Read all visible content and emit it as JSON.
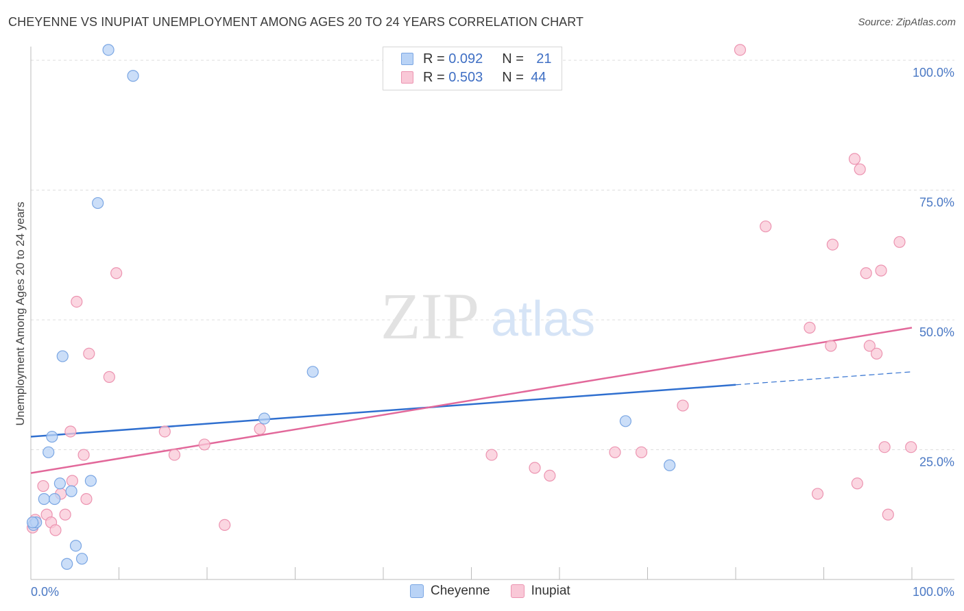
{
  "title": "CHEYENNE VS INUPIAT UNEMPLOYMENT AMONG AGES 20 TO 24 YEARS CORRELATION CHART",
  "source": "Source: ZipAtlas.com",
  "watermark": {
    "zip": "ZIP",
    "atlas": "atlas"
  },
  "legend": {
    "cheyenne": {
      "r_label": "R = ",
      "r": "0.092",
      "n_label": "N = ",
      "n": "21"
    },
    "inupiat": {
      "r_label": "R = ",
      "r": "0.503",
      "n_label": "N = ",
      "n": "44"
    }
  },
  "bottom_legend": {
    "cheyenne": "Cheyenne",
    "inupiat": "Inupiat"
  },
  "colors": {
    "cheyenne_fill": "#b9d3f6",
    "cheyenne_stroke": "#7aa6e3",
    "cheyenne_line": "#2f6fcf",
    "inupiat_fill": "#f9c8d7",
    "inupiat_stroke": "#ec93b0",
    "inupiat_line": "#e2689a",
    "tick": "#4a78c4",
    "grid": "#dddddd"
  },
  "chart_data": {
    "type": "scatter",
    "title": "CHEYENNE VS INUPIAT UNEMPLOYMENT AMONG AGES 20 TO 24 YEARS CORRELATION CHART",
    "xlabel": "",
    "ylabel": "Unemployment Among Ages 20 to 24 years",
    "xlim": [
      0,
      100
    ],
    "ylim": [
      0,
      100
    ],
    "x_tick_labels": [
      "0.0%",
      "100.0%"
    ],
    "y_ticks": [
      25,
      50,
      75,
      100
    ],
    "y_tick_labels": [
      "25.0%",
      "50.0%",
      "75.0%",
      "100.0%"
    ],
    "series": [
      {
        "name": "Cheyenne",
        "points": [
          [
            0.3,
            10.5
          ],
          [
            0.6,
            11.0
          ],
          [
            1.5,
            15.5
          ],
          [
            2.0,
            24.5
          ],
          [
            2.4,
            27.5
          ],
          [
            2.7,
            15.5
          ],
          [
            3.3,
            18.5
          ],
          [
            3.6,
            43.0
          ],
          [
            4.1,
            3.0
          ],
          [
            4.6,
            17.0
          ],
          [
            5.1,
            6.5
          ],
          [
            5.8,
            4.0
          ],
          [
            6.8,
            19.0
          ],
          [
            7.6,
            72.5
          ],
          [
            8.8,
            102.0
          ],
          [
            11.6,
            97.0
          ],
          [
            26.5,
            31.0
          ],
          [
            32.0,
            40.0
          ],
          [
            67.5,
            30.5
          ],
          [
            72.5,
            22.0
          ],
          [
            0.2,
            11.0
          ]
        ],
        "trend": {
          "x": [
            0,
            80
          ],
          "y": [
            27.5,
            37.5
          ],
          "dashed_to": [
            100,
            40.0
          ]
        }
      },
      {
        "name": "Inupiat",
        "points": [
          [
            0.2,
            10.0
          ],
          [
            0.5,
            11.5
          ],
          [
            1.4,
            18.0
          ],
          [
            1.8,
            12.5
          ],
          [
            2.3,
            11.0
          ],
          [
            2.8,
            9.5
          ],
          [
            3.4,
            16.5
          ],
          [
            3.9,
            12.5
          ],
          [
            4.5,
            28.5
          ],
          [
            4.7,
            19.0
          ],
          [
            5.2,
            53.5
          ],
          [
            6.0,
            24.0
          ],
          [
            6.3,
            15.5
          ],
          [
            6.6,
            43.5
          ],
          [
            8.9,
            39.0
          ],
          [
            9.7,
            59.0
          ],
          [
            15.2,
            28.5
          ],
          [
            16.3,
            24.0
          ],
          [
            19.7,
            26.0
          ],
          [
            22.0,
            10.5
          ],
          [
            26.0,
            29.0
          ],
          [
            52.3,
            24.0
          ],
          [
            57.2,
            21.5
          ],
          [
            58.9,
            20.0
          ],
          [
            66.3,
            24.5
          ],
          [
            69.3,
            24.5
          ],
          [
            74.0,
            33.5
          ],
          [
            80.5,
            102.0
          ],
          [
            83.4,
            68.0
          ],
          [
            88.4,
            48.5
          ],
          [
            89.3,
            16.5
          ],
          [
            90.8,
            45.0
          ],
          [
            91.0,
            64.5
          ],
          [
            93.5,
            81.0
          ],
          [
            93.8,
            18.5
          ],
          [
            94.1,
            79.0
          ],
          [
            94.8,
            59.0
          ],
          [
            95.2,
            45.0
          ],
          [
            96.0,
            43.5
          ],
          [
            96.5,
            59.5
          ],
          [
            96.9,
            25.5
          ],
          [
            97.3,
            12.5
          ],
          [
            98.6,
            65.0
          ],
          [
            99.9,
            25.5
          ]
        ],
        "trend": {
          "x": [
            0,
            100
          ],
          "y": [
            20.5,
            48.5
          ]
        }
      }
    ]
  }
}
